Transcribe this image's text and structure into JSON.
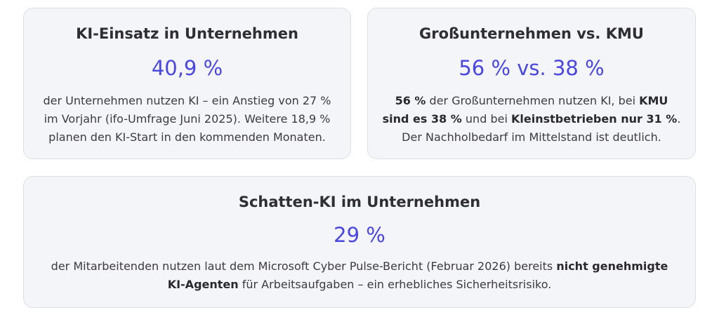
{
  "cards": [
    {
      "title": "KI-Einsatz in Unternehmen",
      "stat": "40,9 %",
      "lines": [
        {
          "t1": "der Unternehmen nutzen KI – ein Anstieg von 27 %"
        },
        {
          "t1": "im Vorjahr (ifo-Umfrage Juni 2025). Weitere 18,9 %"
        },
        {
          "t1": "planen den KI-Start in den kommenden Monaten."
        }
      ]
    },
    {
      "title": "Großunternehmen vs. KMU",
      "stat": "56 % vs. 38 %",
      "lines": [
        {
          "b1": "56 %",
          "t1": " der Großunternehmen nutzen KI, bei ",
          "b2": "KMU"
        },
        {
          "b1": "sind es 38 %",
          "t1": " und bei ",
          "b2": "Kleinstbetrieben nur 31 %",
          "t2": "."
        },
        {
          "t1": "Der Nachholbedarf im Mittelstand ist deutlich."
        }
      ]
    },
    {
      "title": "Schatten-KI im Unternehmen",
      "stat": "29 %",
      "lines": [
        {
          "t1": "der Mitarbeitenden nutzen laut dem Microsoft Cyber Pulse-Bericht (Februar 2026) bereits ",
          "b1": "nicht genehmigte"
        },
        {
          "b1": "KI-Agenten",
          "t1": " für Arbeitsaufgaben – ein erhebliches Sicherheitsrisiko."
        }
      ]
    }
  ],
  "colors": {
    "accent": "#4a47e0",
    "card_background": "#f4f5f8",
    "card_border": "#dcdfe6"
  }
}
